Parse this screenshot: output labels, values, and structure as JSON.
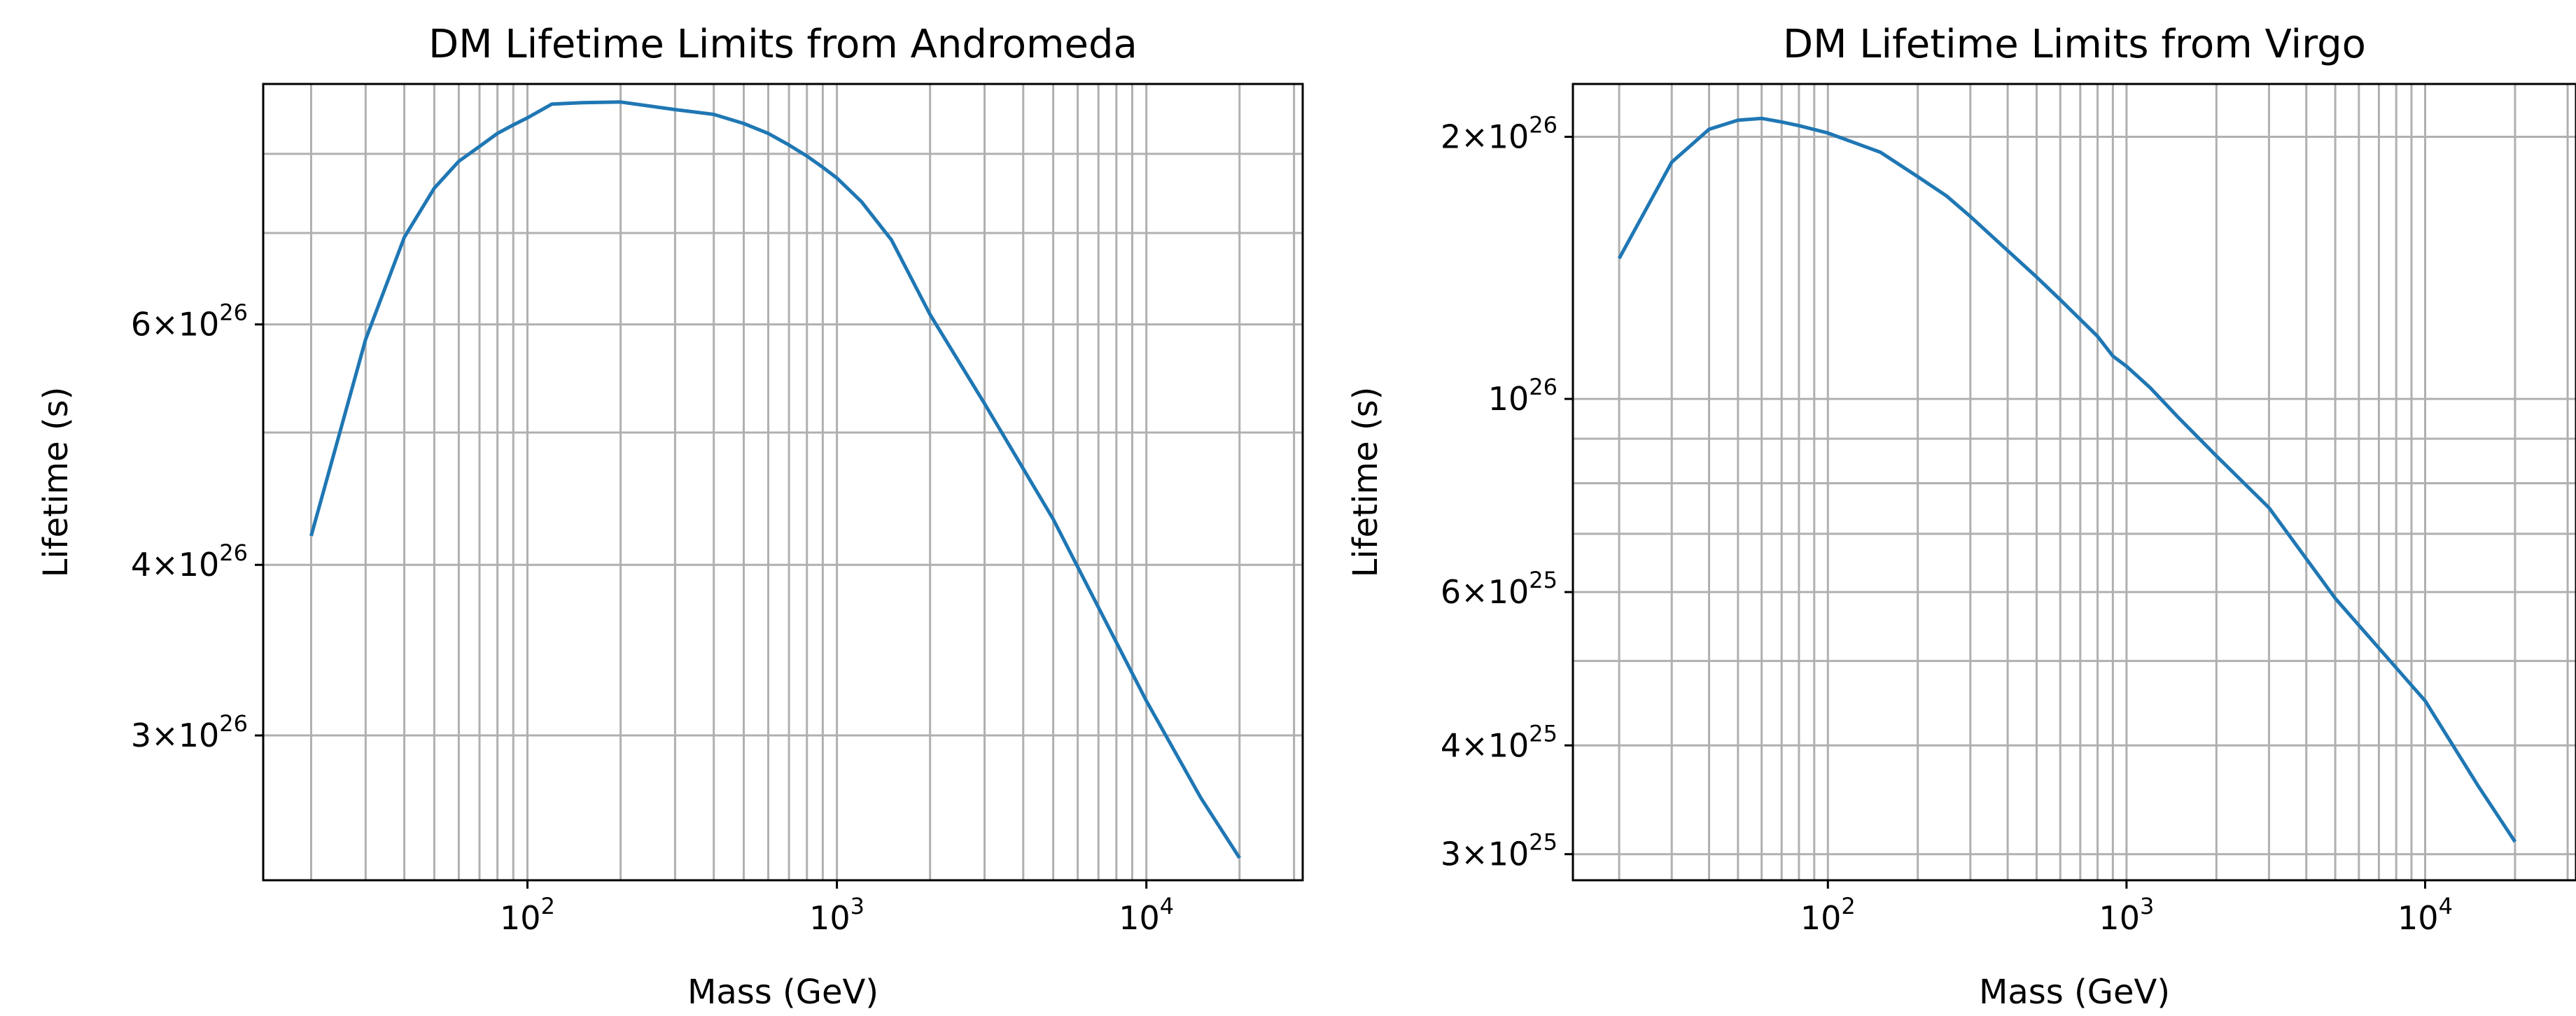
{
  "chart_data": [
    {
      "type": "line",
      "title": "DM Lifetime Limits from Andromeda",
      "xlabel": "Mass (GeV)",
      "ylabel": "Lifetime (s)",
      "xscale": "log",
      "yscale": "log",
      "xlim": [
        14,
        32000
      ],
      "ylim": [
        2.35e+26,
        9e+26
      ],
      "grid": "major and minor",
      "x_ticks": [
        {
          "value": 100,
          "base": "10",
          "exp": "2"
        },
        {
          "value": 1000,
          "base": "10",
          "exp": "3"
        },
        {
          "value": 10000,
          "base": "10",
          "exp": "4"
        }
      ],
      "y_ticks": [
        {
          "value": 3e+26,
          "coef": "3",
          "base": "×10",
          "exp": "26"
        },
        {
          "value": 4e+26,
          "coef": "4",
          "base": "×10",
          "exp": "26"
        },
        {
          "value": 6e+26,
          "coef": "6",
          "base": "×10",
          "exp": "26"
        }
      ],
      "series": [
        {
          "color": "#1f77b4",
          "x": [
            20,
            30,
            40,
            50,
            60,
            70,
            80,
            90,
            100,
            120,
            150,
            200,
            300,
            400,
            500,
            600,
            700,
            800,
            900,
            1000,
            1200,
            1500,
            2000,
            3000,
            5000,
            10000,
            15000,
            20000
          ],
          "y": [
            4.2e+26,
            5.85e+26,
            6.95e+26,
            7.55e+26,
            7.9e+26,
            8.1e+26,
            8.28e+26,
            8.4e+26,
            8.5e+26,
            8.7e+26,
            8.72e+26,
            8.73e+26,
            8.62e+26,
            8.55e+26,
            8.42e+26,
            8.28e+26,
            8.12e+26,
            7.97e+26,
            7.82e+26,
            7.68e+26,
            7.38e+26,
            6.92e+26,
            6.1e+26,
            5.25e+26,
            4.32e+26,
            3.18e+26,
            2.7e+26,
            2.44e+26
          ]
        }
      ]
    },
    {
      "type": "line",
      "title": "DM Lifetime Limits from Virgo",
      "xlabel": "Mass (GeV)",
      "ylabel": "Lifetime (s)",
      "xscale": "log",
      "yscale": "log",
      "xlim": [
        14,
        32000
      ],
      "ylim": [
        2.8e+25,
        2.3e+26
      ],
      "grid": "major and minor",
      "x_ticks": [
        {
          "value": 100,
          "base": "10",
          "exp": "2"
        },
        {
          "value": 1000,
          "base": "10",
          "exp": "3"
        },
        {
          "value": 10000,
          "base": "10",
          "exp": "4"
        }
      ],
      "y_ticks": [
        {
          "value": 3e+25,
          "coef": "3",
          "base": "×10",
          "exp": "25"
        },
        {
          "value": 4e+25,
          "coef": "4",
          "base": "×10",
          "exp": "25"
        },
        {
          "value": 6e+25,
          "coef": "6",
          "base": "×10",
          "exp": "25"
        },
        {
          "value": 1e+26,
          "coef": "",
          "base": "10",
          "exp": "26"
        },
        {
          "value": 2e+26,
          "coef": "2",
          "base": "×10",
          "exp": "26"
        }
      ],
      "series": [
        {
          "color": "#1f77b4",
          "x": [
            20,
            30,
            40,
            50,
            60,
            70,
            80,
            100,
            150,
            200,
            250,
            300,
            400,
            500,
            600,
            800,
            900,
            1000,
            1200,
            1500,
            2000,
            3000,
            5000,
            10000,
            15000,
            20000
          ],
          "y": [
            1.45e+26,
            1.87e+26,
            2.04e+26,
            2.09e+26,
            2.1e+26,
            2.08e+26,
            2.06e+26,
            2.02e+26,
            1.92e+26,
            1.8e+26,
            1.71e+26,
            1.62e+26,
            1.48e+26,
            1.38e+26,
            1.3e+26,
            1.18e+26,
            1.12e+26,
            1.09e+26,
            1.03e+26,
            9.5e+25,
            8.6e+25,
            7.5e+25,
            5.9e+25,
            4.5e+25,
            3.6e+25,
            3.1e+25
          ]
        }
      ]
    }
  ]
}
